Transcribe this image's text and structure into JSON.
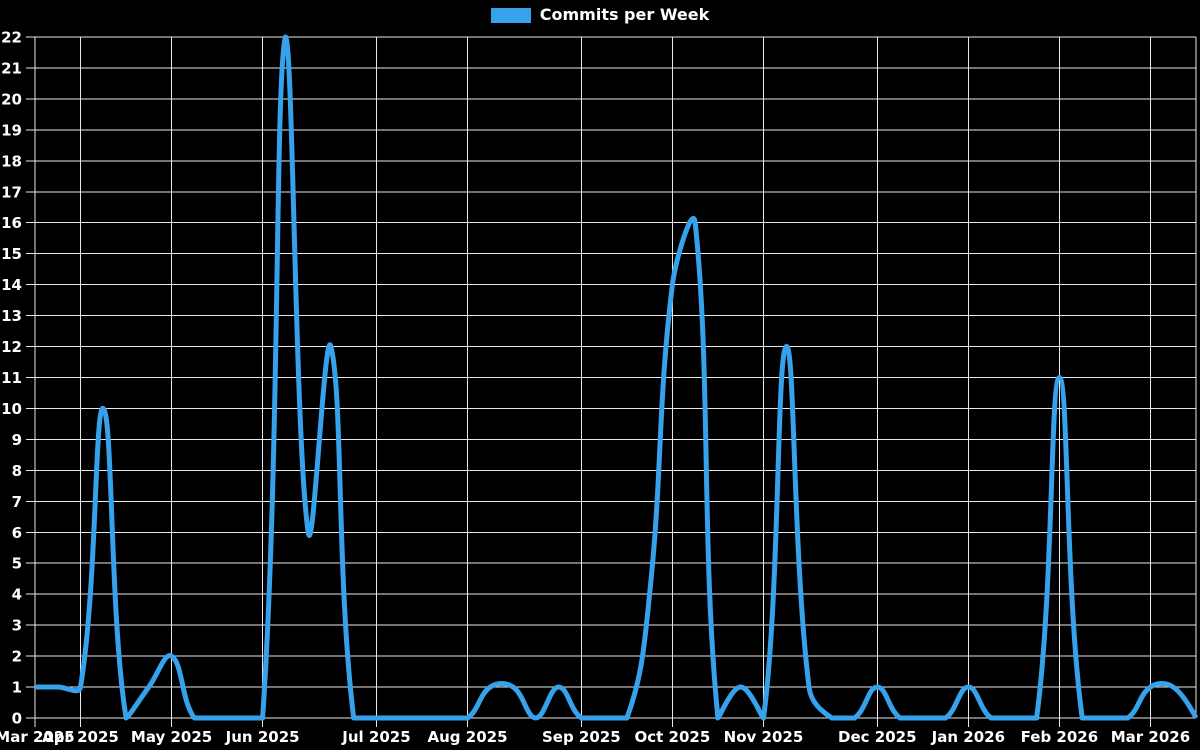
{
  "legend": {
    "label": "Commits per Week"
  },
  "colors": {
    "background": "#000000",
    "line": "#36a2eb",
    "grid": "#e8e8e8",
    "text": "#ffffff"
  },
  "chart_data": {
    "type": "line",
    "title": "Commits per Week",
    "x_unit": "week",
    "series": [
      {
        "name": "Commits per Week",
        "values": [
          1,
          1,
          1,
          10,
          0,
          1,
          2,
          0,
          0,
          0,
          0,
          22,
          6,
          12,
          0,
          0,
          0,
          0,
          0,
          0,
          1,
          1,
          0,
          1,
          0,
          0,
          0,
          4,
          14,
          16,
          0,
          1,
          0,
          12,
          1,
          0,
          0,
          1,
          0,
          0,
          0,
          1,
          0,
          0,
          0,
          11,
          0,
          0,
          0,
          1,
          1,
          0
        ]
      }
    ],
    "x_tick_labels": [
      {
        "index": 0,
        "label": "Mar 2025"
      },
      {
        "index": 2,
        "label": "Apr 2025"
      },
      {
        "index": 6,
        "label": "May 2025"
      },
      {
        "index": 10,
        "label": "Jun 2025"
      },
      {
        "index": 15,
        "label": "Jul 2025"
      },
      {
        "index": 19,
        "label": "Aug 2025"
      },
      {
        "index": 24,
        "label": "Sep 2025"
      },
      {
        "index": 28,
        "label": "Oct 2025"
      },
      {
        "index": 32,
        "label": "Nov 2025"
      },
      {
        "index": 37,
        "label": "Dec 2025"
      },
      {
        "index": 41,
        "label": "Jan 2026"
      },
      {
        "index": 45,
        "label": "Feb 2026"
      },
      {
        "index": 49,
        "label": "Mar 2026"
      }
    ],
    "y_ticks": [
      0,
      1,
      2,
      3,
      4,
      5,
      6,
      7,
      8,
      9,
      10,
      11,
      12,
      13,
      14,
      15,
      16,
      17,
      18,
      19,
      20,
      21,
      22
    ],
    "ylim": [
      0,
      22
    ],
    "grid": true,
    "legend_position": "top-center",
    "line_tension": 0.4
  }
}
